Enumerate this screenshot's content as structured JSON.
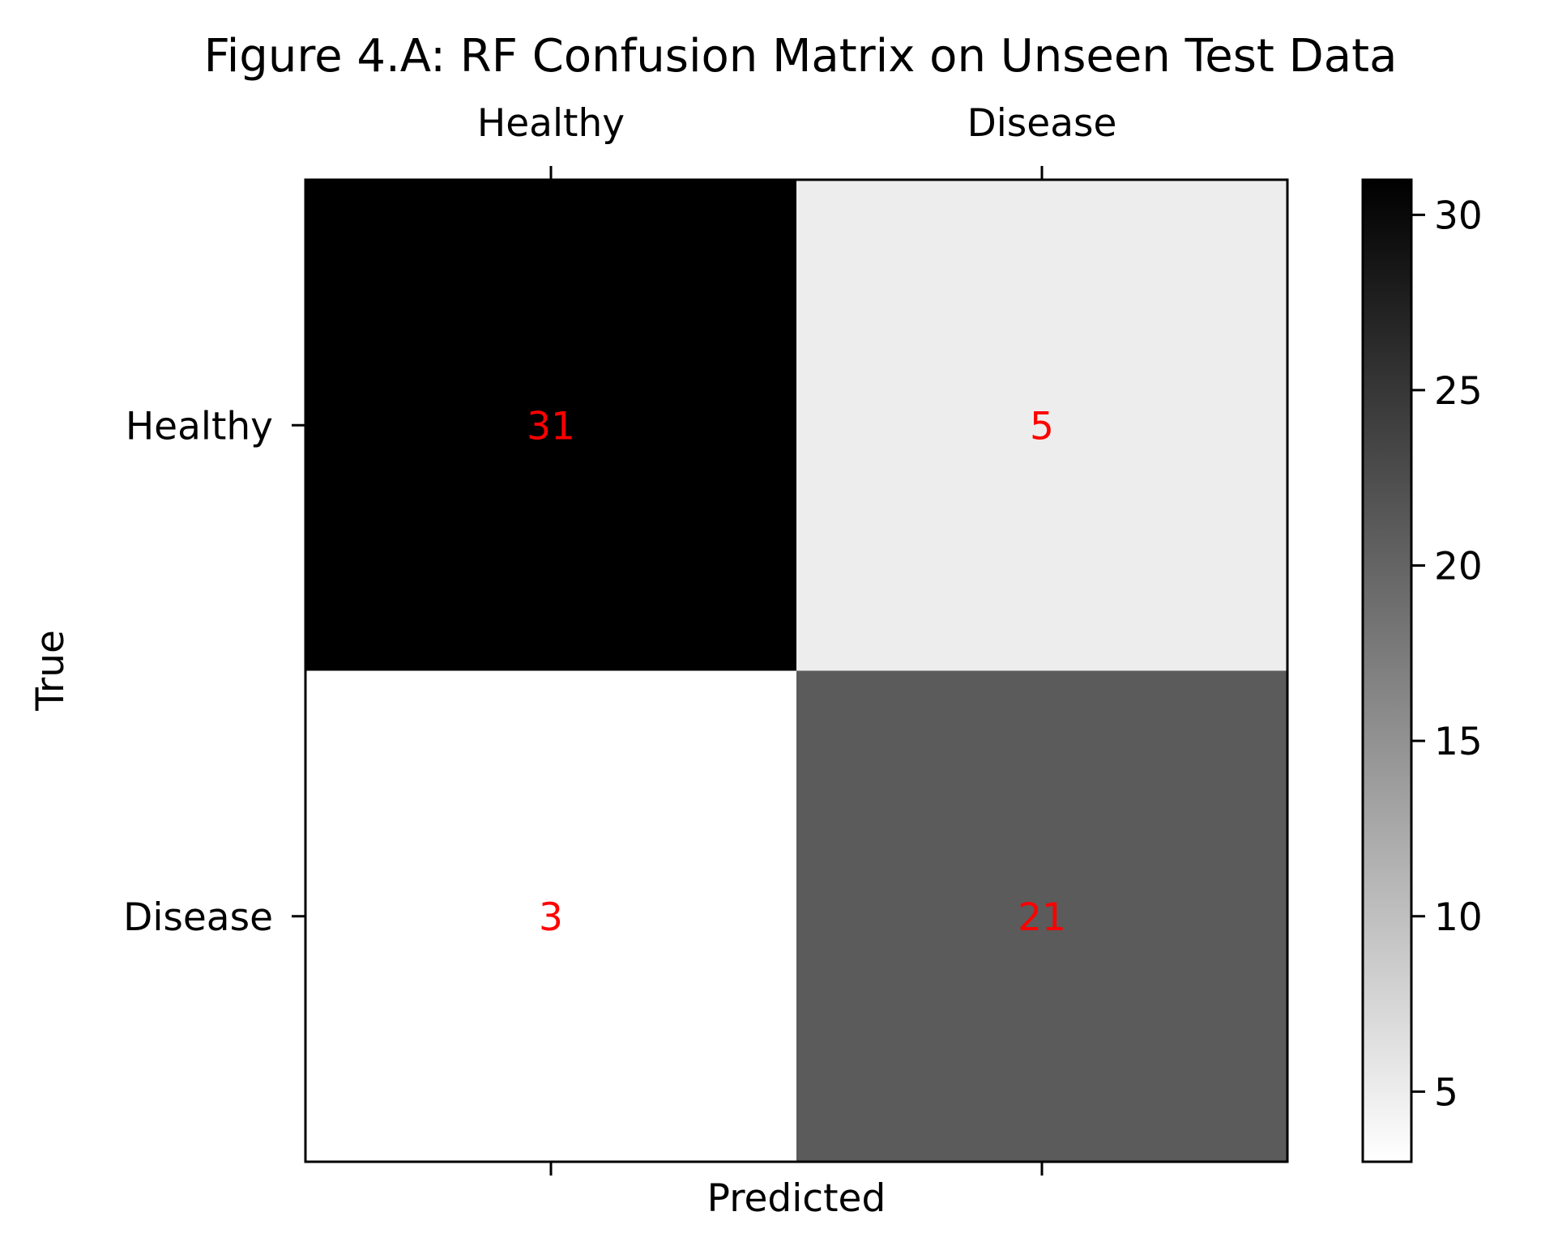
{
  "chart_data": {
    "type": "heatmap",
    "title": "Figure 4.A: RF Confusion Matrix on Unseen Test Data",
    "xlabel": "Predicted",
    "ylabel": "True",
    "x_categories": [
      "Healthy",
      "Disease"
    ],
    "y_categories": [
      "Healthy",
      "Disease"
    ],
    "values": [
      [
        31,
        5
      ],
      [
        3,
        21
      ]
    ],
    "colormap": "gray_r",
    "annotation_color": "#ff0000",
    "color_range": [
      3,
      31
    ],
    "colorbar": {
      "ticks": [
        5,
        10,
        15,
        20,
        25,
        30
      ],
      "tick_labels": [
        "5",
        "10",
        "15",
        "20",
        "25",
        "30"
      ]
    },
    "x_tick_position": "top",
    "grid": false
  }
}
